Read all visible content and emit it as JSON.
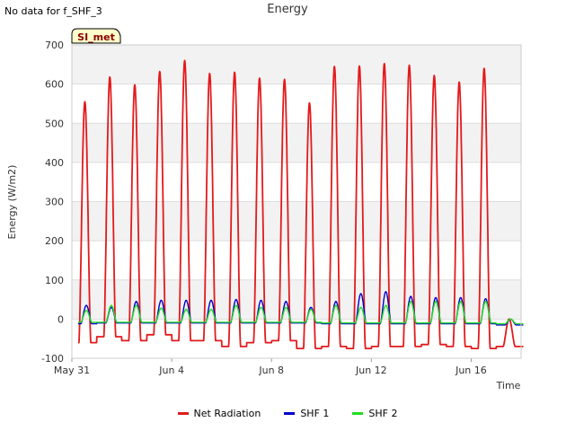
{
  "header": {
    "nodata_text": "No data for f_SHF_3"
  },
  "chart_data": {
    "type": "line",
    "title": "Energy",
    "xlabel": "Time",
    "ylabel": "Energy (W/m2)",
    "ylim": [
      -100,
      700
    ],
    "yticks": [
      -100,
      0,
      100,
      200,
      300,
      400,
      500,
      600,
      700
    ],
    "xlim": [
      "2023-05-31",
      "2023-06-18"
    ],
    "xticks": [
      {
        "date": "2023-05-31",
        "label": "May 31"
      },
      {
        "date": "2023-06-04",
        "label": "Jun 4"
      },
      {
        "date": "2023-06-08",
        "label": "Jun 8"
      },
      {
        "date": "2023-06-12",
        "label": "Jun 12"
      },
      {
        "date": "2023-06-16",
        "label": "Jun 16"
      }
    ],
    "grid": "horizontal bands",
    "badge": "SI_met",
    "days": [
      "May 31",
      "Jun 1",
      "Jun 2",
      "Jun 3",
      "Jun 4",
      "Jun 5",
      "Jun 6",
      "Jun 7",
      "Jun 8",
      "Jun 9",
      "Jun 10",
      "Jun 11",
      "Jun 12",
      "Jun 13",
      "Jun 14",
      "Jun 15",
      "Jun 16",
      "Jun 17"
    ],
    "series": [
      {
        "name": "Net Radiation",
        "color": "#e31a1c",
        "daily_peak": [
          555,
          618,
          598,
          632,
          660,
          627,
          630,
          615,
          612,
          552,
          645,
          646,
          652,
          648,
          622,
          605,
          640,
          0
        ],
        "night_min": [
          -60,
          -45,
          -55,
          -40,
          -55,
          -55,
          -70,
          -60,
          -55,
          -75,
          -70,
          -75,
          -70,
          -70,
          -65,
          -70,
          -75,
          -70
        ]
      },
      {
        "name": "SHF 1",
        "color": "#0000cc",
        "daily_peak": [
          35,
          30,
          45,
          48,
          48,
          48,
          50,
          48,
          45,
          30,
          45,
          65,
          70,
          58,
          55,
          55,
          52,
          0
        ],
        "night_min": [
          -12,
          -10,
          -10,
          -10,
          -10,
          -10,
          -10,
          -10,
          -10,
          -10,
          -12,
          -12,
          -12,
          -12,
          -12,
          -12,
          -12,
          -15
        ]
      },
      {
        "name": "SHF 2",
        "color": "#22dd22",
        "daily_peak": [
          22,
          35,
          35,
          28,
          25,
          25,
          35,
          30,
          30,
          25,
          35,
          30,
          35,
          45,
          45,
          45,
          45,
          0
        ],
        "night_min": [
          -8,
          -8,
          -8,
          -8,
          -8,
          -8,
          -8,
          -8,
          -8,
          -8,
          -10,
          -10,
          -10,
          -10,
          -10,
          -10,
          -10,
          -12
        ]
      }
    ]
  }
}
